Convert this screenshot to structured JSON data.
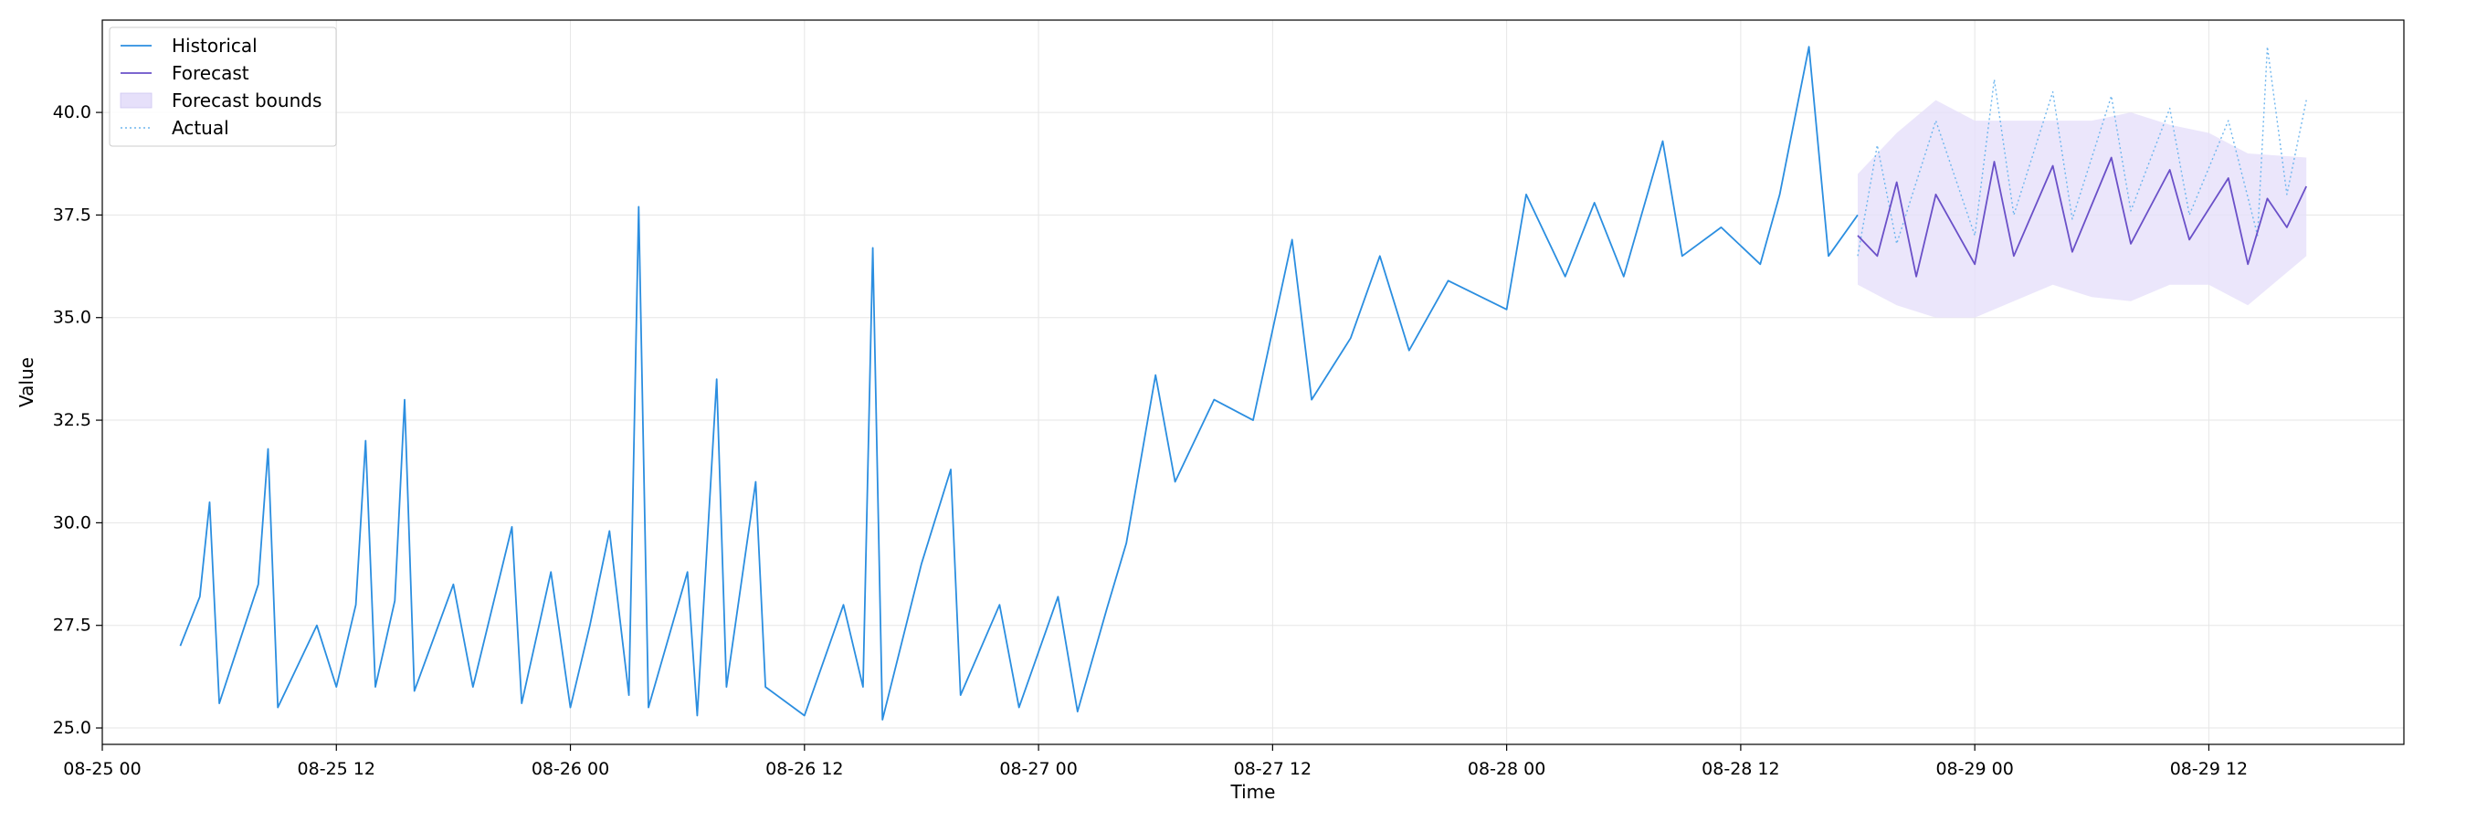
{
  "chart_data": {
    "type": "line",
    "title": "",
    "xlabel": "Time",
    "ylabel": "Value",
    "x_range": [
      "2024-08-25 00:00",
      "2024-08-29 22:00"
    ],
    "ylim": [
      24.6,
      42.25
    ],
    "grid": true,
    "legend_position": "top-left",
    "x_ticks": [
      "08-25 00",
      "08-25 12",
      "08-26 00",
      "08-26 12",
      "08-27 00",
      "08-27 12",
      "08-28 00",
      "08-28 12",
      "08-29 00",
      "08-29 12"
    ],
    "y_ticks": [
      "25.0",
      "27.5",
      "30.0",
      "32.5",
      "35.0",
      "37.5",
      "40.0"
    ],
    "legend": [
      "Historical",
      "Forecast",
      "Forecast bounds",
      "Actual"
    ],
    "colors": {
      "historical": "#2b8ee0",
      "forecast": "#6a50c8",
      "bounds_fill": "#e6e0fa",
      "actual": "#6fb6ee",
      "grid": "#e6e6e6",
      "frame": "#000000"
    },
    "series": [
      {
        "name": "Historical",
        "style": "solid",
        "points": [
          [
            "08-25 04:00",
            27.0
          ],
          [
            "08-25 05:00",
            28.2
          ],
          [
            "08-25 05:30",
            30.5
          ],
          [
            "08-25 06:00",
            25.6
          ],
          [
            "08-25 08:00",
            28.5
          ],
          [
            "08-25 08:30",
            31.8
          ],
          [
            "08-25 09:00",
            25.5
          ],
          [
            "08-25 11:00",
            27.5
          ],
          [
            "08-25 12:00",
            26.0
          ],
          [
            "08-25 13:00",
            28.0
          ],
          [
            "08-25 13:30",
            32.0
          ],
          [
            "08-25 14:00",
            26.0
          ],
          [
            "08-25 15:00",
            28.1
          ],
          [
            "08-25 15:30",
            33.0
          ],
          [
            "08-25 16:00",
            25.9
          ],
          [
            "08-25 18:00",
            28.5
          ],
          [
            "08-25 19:00",
            26.0
          ],
          [
            "08-25 21:00",
            29.9
          ],
          [
            "08-25 21:30",
            25.6
          ],
          [
            "08-25 23:00",
            28.8
          ],
          [
            "08-26 00:00",
            25.5
          ],
          [
            "08-26 01:00",
            27.5
          ],
          [
            "08-26 02:00",
            29.8
          ],
          [
            "08-26 03:00",
            25.8
          ],
          [
            "08-26 03:30",
            37.7
          ],
          [
            "08-26 04:00",
            25.5
          ],
          [
            "08-26 06:00",
            28.8
          ],
          [
            "08-26 06:30",
            25.3
          ],
          [
            "08-26 07:30",
            33.5
          ],
          [
            "08-26 08:00",
            26.0
          ],
          [
            "08-26 09:30",
            31.0
          ],
          [
            "08-26 10:00",
            26.0
          ],
          [
            "08-26 12:00",
            25.3
          ],
          [
            "08-26 14:00",
            28.0
          ],
          [
            "08-26 15:00",
            26.0
          ],
          [
            "08-26 15:30",
            36.7
          ],
          [
            "08-26 16:00",
            25.2
          ],
          [
            "08-26 18:00",
            29.0
          ],
          [
            "08-26 19:30",
            31.3
          ],
          [
            "08-26 20:00",
            25.8
          ],
          [
            "08-26 22:00",
            28.0
          ],
          [
            "08-26 23:00",
            25.5
          ],
          [
            "08-27 01:00",
            28.2
          ],
          [
            "08-27 02:00",
            25.4
          ],
          [
            "08-27 03:30",
            27.9
          ],
          [
            "08-27 04:30",
            29.5
          ],
          [
            "08-27 06:00",
            33.6
          ],
          [
            "08-27 07:00",
            31.0
          ],
          [
            "08-27 09:00",
            33.0
          ],
          [
            "08-27 11:00",
            32.5
          ],
          [
            "08-27 13:00",
            36.9
          ],
          [
            "08-27 14:00",
            33.0
          ],
          [
            "08-27 16:00",
            34.5
          ],
          [
            "08-27 17:30",
            36.5
          ],
          [
            "08-27 19:00",
            34.2
          ],
          [
            "08-27 21:00",
            35.9
          ],
          [
            "08-28 00:00",
            35.2
          ],
          [
            "08-28 01:00",
            38.0
          ],
          [
            "08-28 03:00",
            36.0
          ],
          [
            "08-28 04:30",
            37.8
          ],
          [
            "08-28 06:00",
            36.0
          ],
          [
            "08-28 08:00",
            39.3
          ],
          [
            "08-28 09:00",
            36.5
          ],
          [
            "08-28 11:00",
            37.2
          ],
          [
            "08-28 13:00",
            36.3
          ],
          [
            "08-28 14:00",
            38.0
          ],
          [
            "08-28 15:30",
            41.6
          ],
          [
            "08-28 16:30",
            36.5
          ],
          [
            "08-28 18:00",
            37.5
          ]
        ]
      },
      {
        "name": "Forecast",
        "style": "solid",
        "points": [
          [
            "08-28 18:00",
            37.0
          ],
          [
            "08-28 19:00",
            36.5
          ],
          [
            "08-28 20:00",
            38.3
          ],
          [
            "08-28 21:00",
            36.0
          ],
          [
            "08-28 22:00",
            38.0
          ],
          [
            "08-29 00:00",
            36.3
          ],
          [
            "08-29 01:00",
            38.8
          ],
          [
            "08-29 02:00",
            36.5
          ],
          [
            "08-29 04:00",
            38.7
          ],
          [
            "08-29 05:00",
            36.6
          ],
          [
            "08-29 07:00",
            38.9
          ],
          [
            "08-29 08:00",
            36.8
          ],
          [
            "08-29 10:00",
            38.6
          ],
          [
            "08-29 11:00",
            36.9
          ],
          [
            "08-29 13:00",
            38.4
          ],
          [
            "08-29 14:00",
            36.3
          ],
          [
            "08-29 15:00",
            37.9
          ],
          [
            "08-29 16:00",
            37.2
          ],
          [
            "08-29 17:00",
            38.2
          ]
        ]
      },
      {
        "name": "Forecast bounds",
        "style": "fill",
        "points": [
          [
            "08-28 18:00",
            35.8,
            38.5
          ],
          [
            "08-28 20:00",
            35.3,
            39.5
          ],
          [
            "08-28 22:00",
            35.0,
            40.3
          ],
          [
            "08-29 00:00",
            35.0,
            39.8
          ],
          [
            "08-29 02:00",
            35.4,
            39.8
          ],
          [
            "08-29 04:00",
            35.8,
            39.8
          ],
          [
            "08-29 06:00",
            35.5,
            39.8
          ],
          [
            "08-29 08:00",
            35.4,
            40.0
          ],
          [
            "08-29 10:00",
            35.8,
            39.7
          ],
          [
            "08-29 12:00",
            35.8,
            39.5
          ],
          [
            "08-29 14:00",
            35.3,
            39.0
          ],
          [
            "08-29 17:00",
            36.5,
            38.9
          ]
        ]
      },
      {
        "name": "Actual",
        "style": "dotted",
        "points": [
          [
            "08-28 18:00",
            36.5
          ],
          [
            "08-28 19:00",
            39.2
          ],
          [
            "08-28 20:00",
            36.8
          ],
          [
            "08-28 22:00",
            39.8
          ],
          [
            "08-29 00:00",
            37.0
          ],
          [
            "08-29 01:00",
            40.8
          ],
          [
            "08-29 02:00",
            37.5
          ],
          [
            "08-29 04:00",
            40.5
          ],
          [
            "08-29 05:00",
            37.4
          ],
          [
            "08-29 07:00",
            40.4
          ],
          [
            "08-29 08:00",
            37.6
          ],
          [
            "08-29 10:00",
            40.1
          ],
          [
            "08-29 11:00",
            37.5
          ],
          [
            "08-29 13:00",
            39.8
          ],
          [
            "08-29 14:30",
            37.0
          ],
          [
            "08-29 15:00",
            41.6
          ],
          [
            "08-29 16:00",
            38.0
          ],
          [
            "08-29 17:00",
            40.3
          ]
        ]
      }
    ]
  }
}
